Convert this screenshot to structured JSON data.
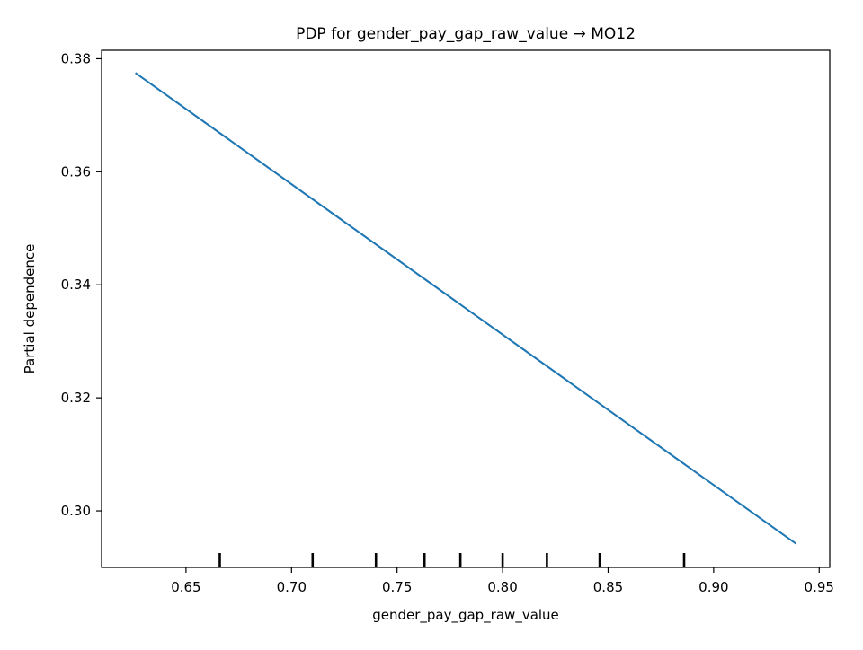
{
  "chart_data": {
    "type": "line",
    "title": "PDP for gender_pay_gap_raw_value → MO12",
    "xlabel": "gender_pay_gap_raw_value",
    "ylabel": "Partial dependence",
    "xlim": [
      0.61,
      0.955
    ],
    "ylim": [
      0.29,
      0.3815
    ],
    "xticks": [
      0.65,
      0.7,
      0.75,
      0.8,
      0.85,
      0.9,
      0.95
    ],
    "xtick_labels": [
      "0.65",
      "0.70",
      "0.75",
      "0.80",
      "0.85",
      "0.90",
      "0.95"
    ],
    "yticks": [
      0.3,
      0.32,
      0.34,
      0.36,
      0.38
    ],
    "ytick_labels": [
      "0.30",
      "0.32",
      "0.34",
      "0.36",
      "0.38"
    ],
    "grid": false,
    "series": [
      {
        "x": [
          0.626,
          0.939
        ],
        "values": [
          0.3775,
          0.2942
        ],
        "color": "#1f77b4"
      }
    ],
    "deciles": [
      0.666,
      0.71,
      0.74,
      0.763,
      0.78,
      0.8,
      0.821,
      0.846,
      0.886
    ],
    "decile_height_fraction": 0.0278
  }
}
